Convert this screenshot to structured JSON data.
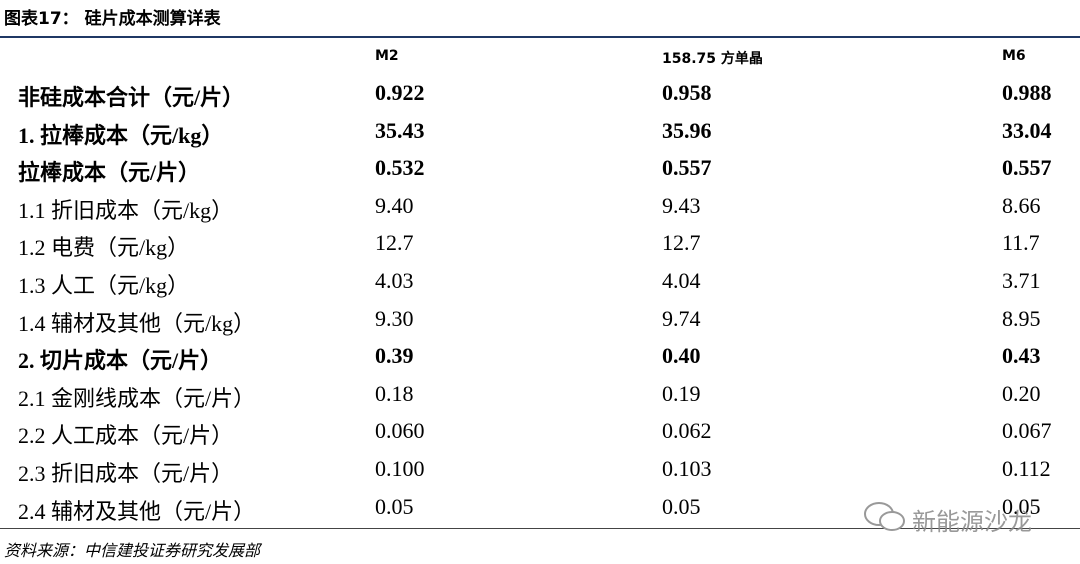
{
  "header": {
    "title": "图表17： 硅片成本测算详表"
  },
  "table": {
    "columns": [
      "M2",
      "158.75 方单晶",
      "M6"
    ],
    "rows": [
      {
        "label": "非硅成本合计（元/片）",
        "values": [
          "0.922",
          "0.958",
          "0.988"
        ],
        "bold": true
      },
      {
        "label": "1. 拉棒成本（元/kg）",
        "values": [
          "35.43",
          "35.96",
          "33.04"
        ],
        "bold": true
      },
      {
        "label": "拉棒成本（元/片）",
        "values": [
          "0.532",
          "0.557",
          "0.557"
        ],
        "bold": true
      },
      {
        "label": "1.1  折旧成本（元/kg）",
        "values": [
          "9.40",
          "9.43",
          "8.66"
        ],
        "bold": false
      },
      {
        "label": "1.2  电费（元/kg）",
        "values": [
          "12.7",
          "12.7",
          "11.7"
        ],
        "bold": false
      },
      {
        "label": "1.3  人工（元/kg）",
        "values": [
          "4.03",
          "4.04",
          "3.71"
        ],
        "bold": false
      },
      {
        "label": "1.4  辅材及其他（元/kg）",
        "values": [
          "9.30",
          "9.74",
          "8.95"
        ],
        "bold": false
      },
      {
        "label": "2. 切片成本（元/片）",
        "values": [
          "0.39",
          "0.40",
          "0.43"
        ],
        "bold": true
      },
      {
        "label": "2.1  金刚线成本（元/片）",
        "values": [
          "0.18",
          "0.19",
          "0.20"
        ],
        "bold": false
      },
      {
        "label": "2.2  人工成本（元/片）",
        "values": [
          "0.060",
          "0.062",
          "0.067"
        ],
        "bold": false
      },
      {
        "label": "2.3  折旧成本（元/片）",
        "values": [
          "0.100",
          "0.103",
          "0.112"
        ],
        "bold": false
      },
      {
        "label": "2.4  辅材及其他（元/片）",
        "values": [
          "0.05",
          "0.05",
          "0.05"
        ],
        "bold": false
      }
    ]
  },
  "source": "资料来源：中信建投证券研究发展部",
  "watermark": "新能源沙龙"
}
